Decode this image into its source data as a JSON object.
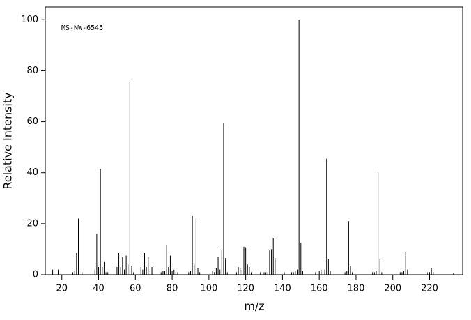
{
  "chart_data": {
    "type": "bar",
    "annotation": "MS-NW-6545",
    "xlabel": "m/z",
    "ylabel": "Relative Intensity",
    "x": [
      15,
      18,
      26,
      27,
      28,
      29,
      31,
      38,
      39,
      40,
      41,
      42,
      43,
      44,
      45,
      50,
      51,
      52,
      53,
      54,
      55,
      56,
      57,
      58,
      59,
      63,
      64,
      65,
      66,
      67,
      68,
      69,
      74,
      75,
      76,
      77,
      78,
      79,
      80,
      81,
      82,
      83,
      89,
      90,
      91,
      92,
      93,
      94,
      95,
      102,
      103,
      104,
      105,
      106,
      107,
      108,
      109,
      110,
      115,
      116,
      117,
      118,
      119,
      120,
      121,
      122,
      123,
      128,
      130,
      131,
      132,
      133,
      134,
      135,
      136,
      137,
      141,
      145,
      146,
      147,
      148,
      149,
      150,
      151,
      158,
      160,
      161,
      162,
      163,
      164,
      165,
      166,
      174,
      175,
      176,
      177,
      178,
      189,
      190,
      191,
      192,
      193,
      194,
      204,
      205,
      206,
      207,
      208,
      219,
      220,
      221,
      222,
      233
    ],
    "values": [
      2,
      2,
      1,
      1.5,
      8.5,
      22,
      1,
      2,
      16,
      3,
      41.5,
      3,
      5,
      1,
      1,
      3,
      8.5,
      3,
      7,
      2,
      7.5,
      4,
      75.5,
      3.5,
      1,
      3,
      2,
      8.5,
      3,
      7,
      1.5,
      3,
      1,
      1.5,
      1.5,
      11.5,
      3,
      7.5,
      1.5,
      2,
      1,
      1,
      1,
      1.5,
      23,
      4,
      22,
      2.5,
      1,
      1.5,
      1,
      2.5,
      7,
      2,
      9.5,
      59.5,
      6.5,
      1,
      1,
      3,
      2.5,
      2,
      11,
      10.5,
      4,
      3,
      1,
      1,
      1,
      1,
      1,
      9.5,
      10,
      14.5,
      6.5,
      1.5,
      1,
      1,
      1,
      1.5,
      2,
      100,
      12.5,
      1.5,
      1,
      1.5,
      2,
      1.5,
      2,
      45.5,
      6,
      1.5,
      1,
      1.5,
      21,
      3.5,
      1,
      1,
      1,
      1.5,
      40,
      6,
      1,
      1,
      1,
      1.5,
      9,
      2,
      1,
      1,
      2.5,
      1,
      0.5
    ],
    "color": "#000000",
    "xlim": [
      11,
      238
    ],
    "xticks": [
      20,
      40,
      60,
      80,
      100,
      120,
      140,
      160,
      180,
      200,
      220
    ],
    "ylim": [
      0,
      105
    ],
    "yticks": [
      0,
      20,
      40,
      60,
      80,
      100
    ]
  }
}
